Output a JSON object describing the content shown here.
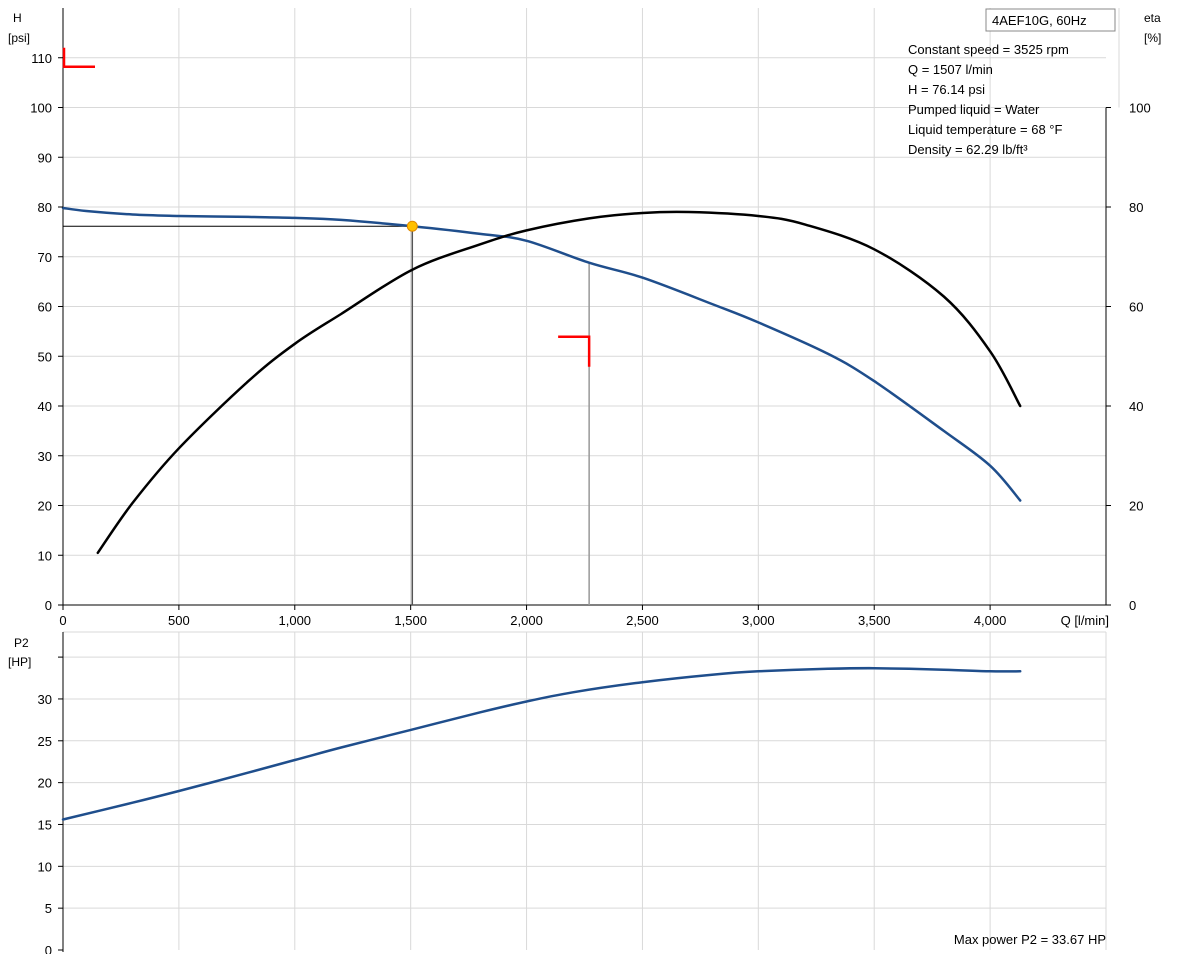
{
  "chart_data": [
    {
      "type": "line",
      "title": "4AEF10G, 60Hz",
      "info_lines": [
        "Constant speed = 3525 rpm",
        "Q = 1507 l/min",
        "H = 76.14 psi",
        "Pumped liquid = Water",
        "Liquid temperature = 68 °F",
        "Density = 62.29 lb/ft³"
      ],
      "xlabel": "Q [l/min]",
      "ylabel_line1": "H",
      "ylabel_line2": "[psi]",
      "y2label_line1": "eta",
      "y2label_line2": "[%]",
      "xlim": [
        0,
        4500
      ],
      "ylim": [
        0,
        120
      ],
      "y2lim": [
        0,
        120
      ],
      "x_ticks": [
        0,
        500,
        1000,
        1500,
        2000,
        2500,
        3000,
        3500,
        4000
      ],
      "x_tick_labels": [
        "0",
        "500",
        "1,000",
        "1,500",
        "2,000",
        "2,500",
        "3,000",
        "3,500",
        "4,000",
        "Q [l/min]"
      ],
      "y_ticks": [
        0,
        10,
        20,
        30,
        40,
        50,
        60,
        70,
        80,
        90,
        100,
        110
      ],
      "y_tick_labels": [
        "0",
        "10",
        "20",
        "30",
        "40",
        "50",
        "60",
        "70",
        "80",
        "90",
        "100",
        "110"
      ],
      "y2_ticks": [
        0,
        20,
        40,
        60,
        80,
        100
      ],
      "y2_tick_labels": [
        "0",
        "20",
        "40",
        "60",
        "80",
        "100"
      ],
      "grid": true,
      "series": [
        {
          "key": "head",
          "color": "#1f4e8c",
          "axis": "left",
          "x": [
            0,
            100,
            300,
            500,
            800,
            1000,
            1200,
            1507,
            1800,
            2000,
            2270,
            2500,
            2800,
            3000,
            3300,
            3500,
            3800,
            4000,
            4130
          ],
          "y": [
            79.8,
            79.2,
            78.5,
            78.2,
            78.0,
            77.8,
            77.4,
            76.14,
            74.6,
            73.2,
            68.8,
            65.8,
            60.5,
            56.8,
            50.5,
            45.0,
            35.0,
            28.0,
            21.0
          ]
        },
        {
          "key": "efficiency",
          "color": "#000000",
          "axis": "right",
          "x": [
            150,
            300,
            500,
            800,
            1000,
            1200,
            1507,
            1800,
            2000,
            2270,
            2500,
            2700,
            3000,
            3200,
            3500,
            3800,
            4000,
            4130
          ],
          "y": [
            10.5,
            20.5,
            31.5,
            45.0,
            52.5,
            58.5,
            67.4,
            72.5,
            75.3,
            77.7,
            78.8,
            79.0,
            78.2,
            76.5,
            71.5,
            62.0,
            51.0,
            40.0
          ]
        }
      ],
      "duty_point": {
        "x": 1507,
        "y": 76.14,
        "color": "#ffc000"
      },
      "reference_line_x": 2270,
      "markers": [
        {
          "label": "head-tolerance-marker",
          "x": 0,
          "y": 110,
          "color": "#ff0000"
        },
        {
          "label": "efficiency-tolerance-marker",
          "x": 2270,
          "y": 49.5,
          "color": "#ff0000"
        }
      ]
    },
    {
      "type": "line",
      "ylabel_line1": "P2",
      "ylabel_line2": "[HP]",
      "xlim": [
        0,
        4500
      ],
      "ylim": [
        0,
        38
      ],
      "y_ticks": [
        0,
        5,
        10,
        15,
        20,
        25,
        30
      ],
      "y_tick_labels": [
        "0",
        "5",
        "10",
        "15",
        "20",
        "25",
        "30"
      ],
      "grid": true,
      "series": [
        {
          "key": "power",
          "color": "#1f4e8c",
          "x": [
            0,
            300,
            500,
            800,
            1000,
            1200,
            1500,
            1800,
            2000,
            2200,
            2500,
            2800,
            3000,
            3300,
            3500,
            3800,
            4000,
            4130
          ],
          "y": [
            15.6,
            17.6,
            19.0,
            21.2,
            22.7,
            24.2,
            26.3,
            28.4,
            29.7,
            30.8,
            32.0,
            32.9,
            33.3,
            33.6,
            33.67,
            33.5,
            33.3,
            33.3
          ]
        }
      ],
      "note": "Max power P2 = 33.67 HP"
    }
  ]
}
